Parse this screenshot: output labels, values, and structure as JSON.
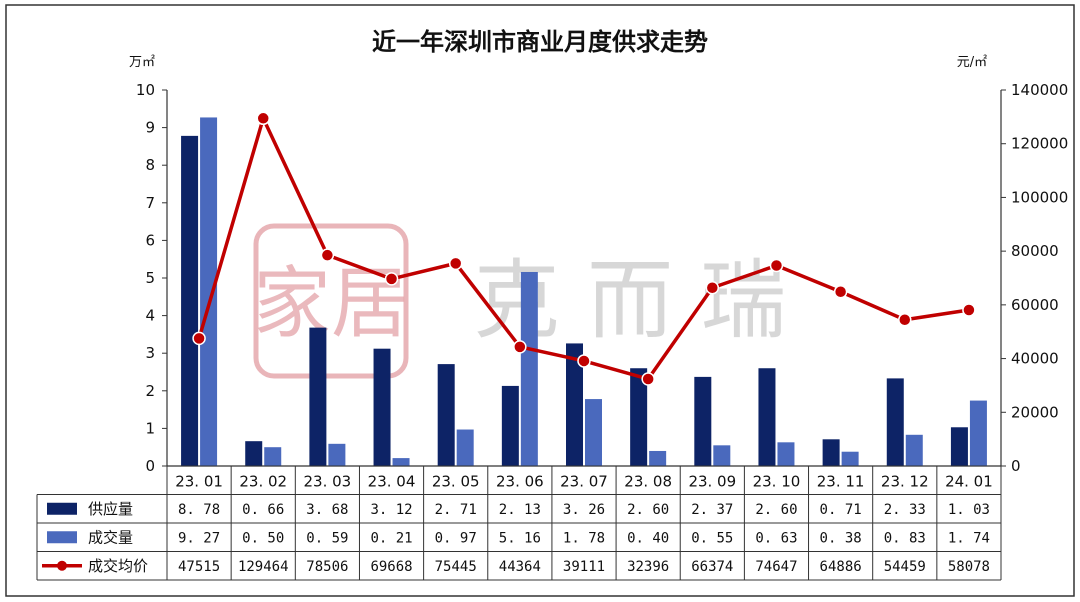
{
  "chart_data": {
    "type": "bar",
    "title": "近一年深圳市商业月度供求走势",
    "categories": [
      "23.01",
      "23.02",
      "23.03",
      "23.04",
      "23.05",
      "23.06",
      "23.07",
      "23.08",
      "23.09",
      "23.10",
      "23.11",
      "23.12",
      "24.01"
    ],
    "left_axis": {
      "unit": "万㎡",
      "ylim": [
        0,
        10
      ],
      "ticks": [
        0,
        1,
        2,
        3,
        4,
        5,
        6,
        7,
        8,
        9,
        10
      ]
    },
    "right_axis": {
      "unit": "元/㎡",
      "ylim": [
        0,
        140000
      ],
      "ticks": [
        0,
        20000,
        40000,
        60000,
        80000,
        100000,
        120000,
        140000
      ]
    },
    "grid": false,
    "legend": "table-below",
    "series": [
      {
        "name": "供应量",
        "type": "bar",
        "axis": "left",
        "color": "#0d2366",
        "values": [
          8.78,
          0.66,
          3.68,
          3.12,
          2.71,
          2.13,
          3.26,
          2.6,
          2.37,
          2.6,
          0.71,
          2.33,
          1.03
        ],
        "labels": [
          "8. 78",
          "0. 66",
          "3. 68",
          "3. 12",
          "2. 71",
          "2. 13",
          "3. 26",
          "2. 60",
          "2. 37",
          "2. 60",
          "0. 71",
          "2. 33",
          "1. 03"
        ]
      },
      {
        "name": "成交量",
        "type": "bar",
        "axis": "left",
        "color": "#4a69bd",
        "values": [
          9.27,
          0.5,
          0.59,
          0.21,
          0.97,
          5.16,
          1.78,
          0.4,
          0.55,
          0.63,
          0.38,
          0.83,
          1.74
        ],
        "labels": [
          "9. 27",
          "0. 50",
          "0. 59",
          "0. 21",
          "0. 97",
          "5. 16",
          "1. 78",
          "0. 40",
          "0. 55",
          "0. 63",
          "0. 38",
          "0. 83",
          "1. 74"
        ]
      },
      {
        "name": "成交均价",
        "type": "line",
        "axis": "right",
        "color": "#c00000",
        "values": [
          47515,
          129464,
          78506,
          69668,
          75445,
          44364,
          39111,
          32396,
          66374,
          74647,
          64886,
          54459,
          58078
        ],
        "labels": [
          "47515",
          "129464",
          "78506",
          "69668",
          "75445",
          "44364",
          "39111",
          "32396",
          "66374",
          "74647",
          "64886",
          "54459",
          "58078"
        ]
      }
    ]
  },
  "watermark": {
    "seal_text": "家居",
    "brand_text": "克 而 瑞"
  }
}
